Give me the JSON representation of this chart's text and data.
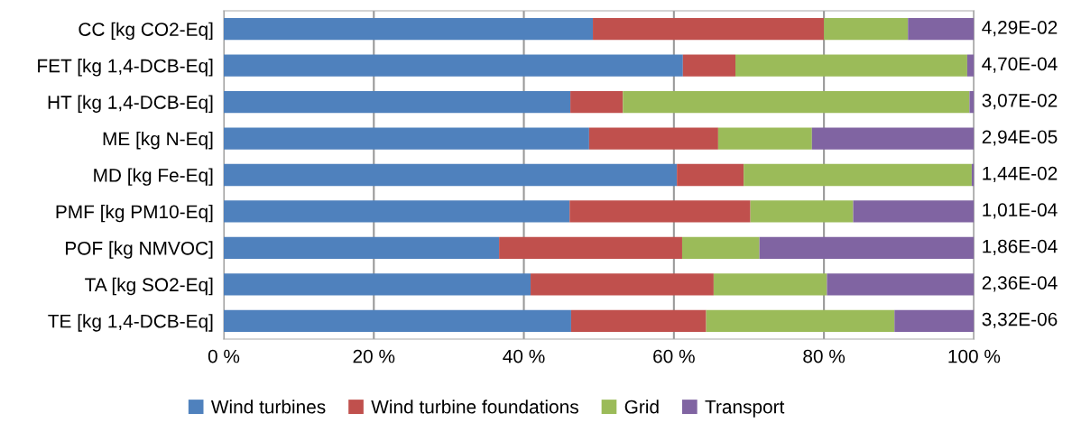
{
  "chart_data": {
    "type": "bar",
    "orientation": "horizontal",
    "stacked": true,
    "categories": [
      "CC [kg CO2-Eq]",
      "FET [kg 1,4-DCB-Eq]",
      "HT [kg 1,4-DCB-Eq]",
      "ME [kg N-Eq]",
      "MD [kg Fe-Eq]",
      "PMF [kg PM10-Eq]",
      "POF [kg NMVOC]",
      "TA [kg SO2-Eq]",
      "TE [kg 1,4-DCB-Eq]"
    ],
    "series": [
      {
        "name": "Wind turbines",
        "color": "#4f81bd",
        "values": [
          49.2,
          61.2,
          46.2,
          48.7,
          60.4,
          46.1,
          36.7,
          40.9,
          46.3
        ]
      },
      {
        "name": "Wind turbine foundations",
        "color": "#c0504d",
        "values": [
          30.8,
          7.0,
          7.0,
          17.2,
          8.9,
          24.1,
          24.4,
          24.4,
          18.0
        ]
      },
      {
        "name": "Grid",
        "color": "#9bbb59",
        "values": [
          11.2,
          30.9,
          46.2,
          12.5,
          30.4,
          13.7,
          10.3,
          15.1,
          25.1
        ]
      },
      {
        "name": "Transport",
        "color": "#8064a2",
        "values": [
          8.8,
          0.9,
          0.6,
          21.6,
          0.3,
          16.1,
          28.6,
          19.6,
          10.6
        ]
      }
    ],
    "totals": [
      "4,29E-02",
      "4,70E-04",
      "3,07E-02",
      "2,94E-05",
      "1,44E-02",
      "1,01E-04",
      "1,86E-04",
      "2,36E-04",
      "3,32E-06"
    ],
    "xlim": [
      0,
      100
    ],
    "xticks": [
      {
        "value": 0,
        "label": "0 %"
      },
      {
        "value": 20,
        "label": "20 %"
      },
      {
        "value": 40,
        "label": "40 %"
      },
      {
        "value": 60,
        "label": "60 %"
      },
      {
        "value": 80,
        "label": "80 %"
      },
      {
        "value": 100,
        "label": "100 %"
      }
    ],
    "grid": "x",
    "legend": "bottom"
  }
}
